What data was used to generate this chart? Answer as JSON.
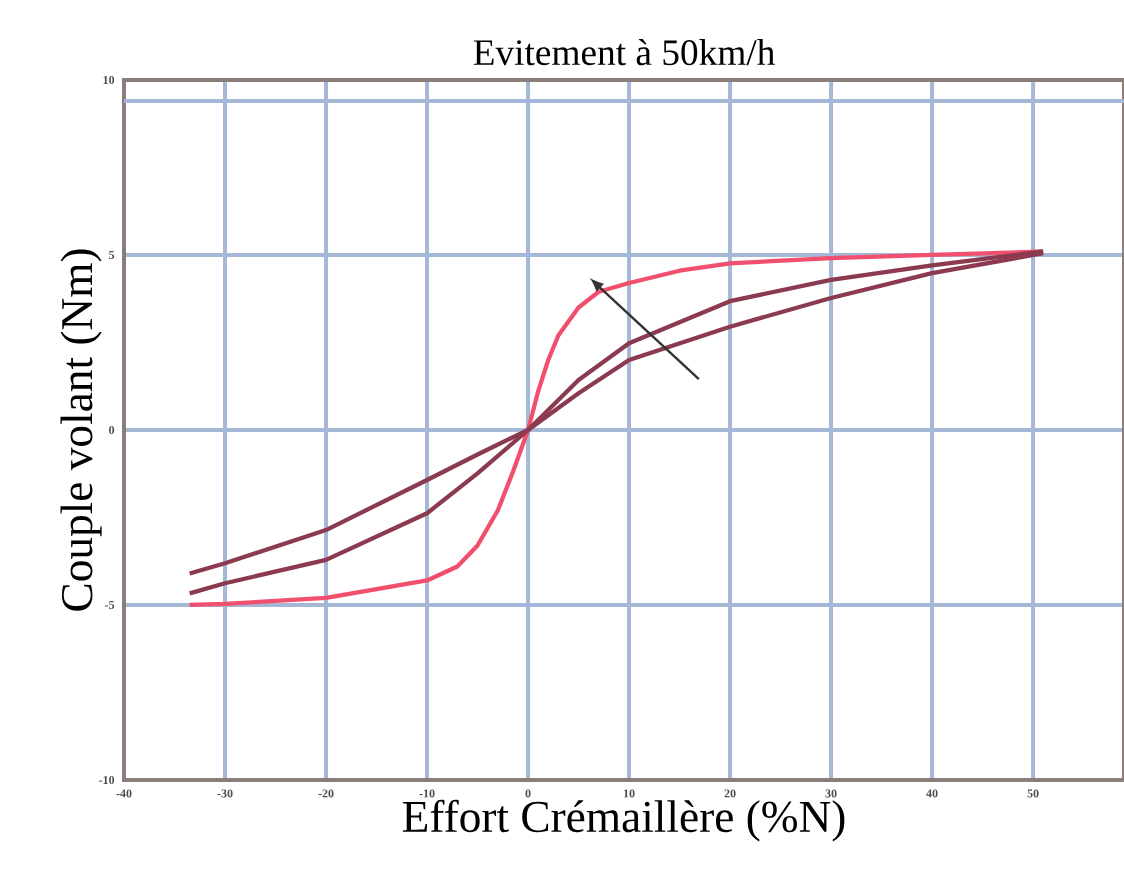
{
  "chart_data": {
    "type": "line",
    "title": "Evitement à 50km/h",
    "xlabel": "Effort Crémaillère (%N)",
    "ylabel": "Couple volant (Nm)",
    "xlim": [
      -40,
      59
    ],
    "ylim": [
      -10,
      10
    ],
    "xticks": [
      -40,
      -30,
      -20,
      -10,
      0,
      10,
      20,
      30,
      40,
      50
    ],
    "yticks": [
      -10,
      -5,
      0,
      5,
      10
    ],
    "grid": true,
    "marker": "none",
    "line_style": "solid",
    "ref_lines": [
      {
        "axis": "y",
        "value": 9.4,
        "color": "#a6b8d8"
      }
    ],
    "series": [
      {
        "color": "#f0506e",
        "x": [
          -33.5,
          -30,
          -20,
          -10,
          -7,
          -5,
          -3,
          -1.5,
          0,
          1,
          2,
          3,
          5,
          7,
          10,
          15,
          20,
          30,
          40,
          51
        ],
        "values": [
          -5.0,
          -4.97,
          -4.8,
          -4.3,
          -3.9,
          -3.3,
          -2.3,
          -1.2,
          0,
          1.1,
          2.0,
          2.7,
          3.5,
          3.95,
          4.2,
          4.55,
          4.76,
          4.91,
          5.0,
          5.1
        ]
      },
      {
        "color": "#8b3a4f",
        "x": [
          -33.5,
          -30,
          -20,
          -10,
          -5,
          0,
          5,
          10,
          20,
          30,
          40,
          51
        ],
        "values": [
          -4.67,
          -4.38,
          -3.71,
          -2.38,
          -1.24,
          0,
          1.43,
          2.48,
          3.68,
          4.29,
          4.7,
          5.1
        ]
      },
      {
        "color": "#8b3a4f",
        "x": [
          -33.5,
          -30,
          -20,
          -10,
          -5,
          0,
          5,
          10,
          20,
          30,
          40,
          51
        ],
        "values": [
          -4.1,
          -3.81,
          -2.86,
          -1.43,
          -0.7,
          0,
          1.05,
          2.0,
          2.95,
          3.77,
          4.48,
          5.05
        ]
      }
    ]
  }
}
